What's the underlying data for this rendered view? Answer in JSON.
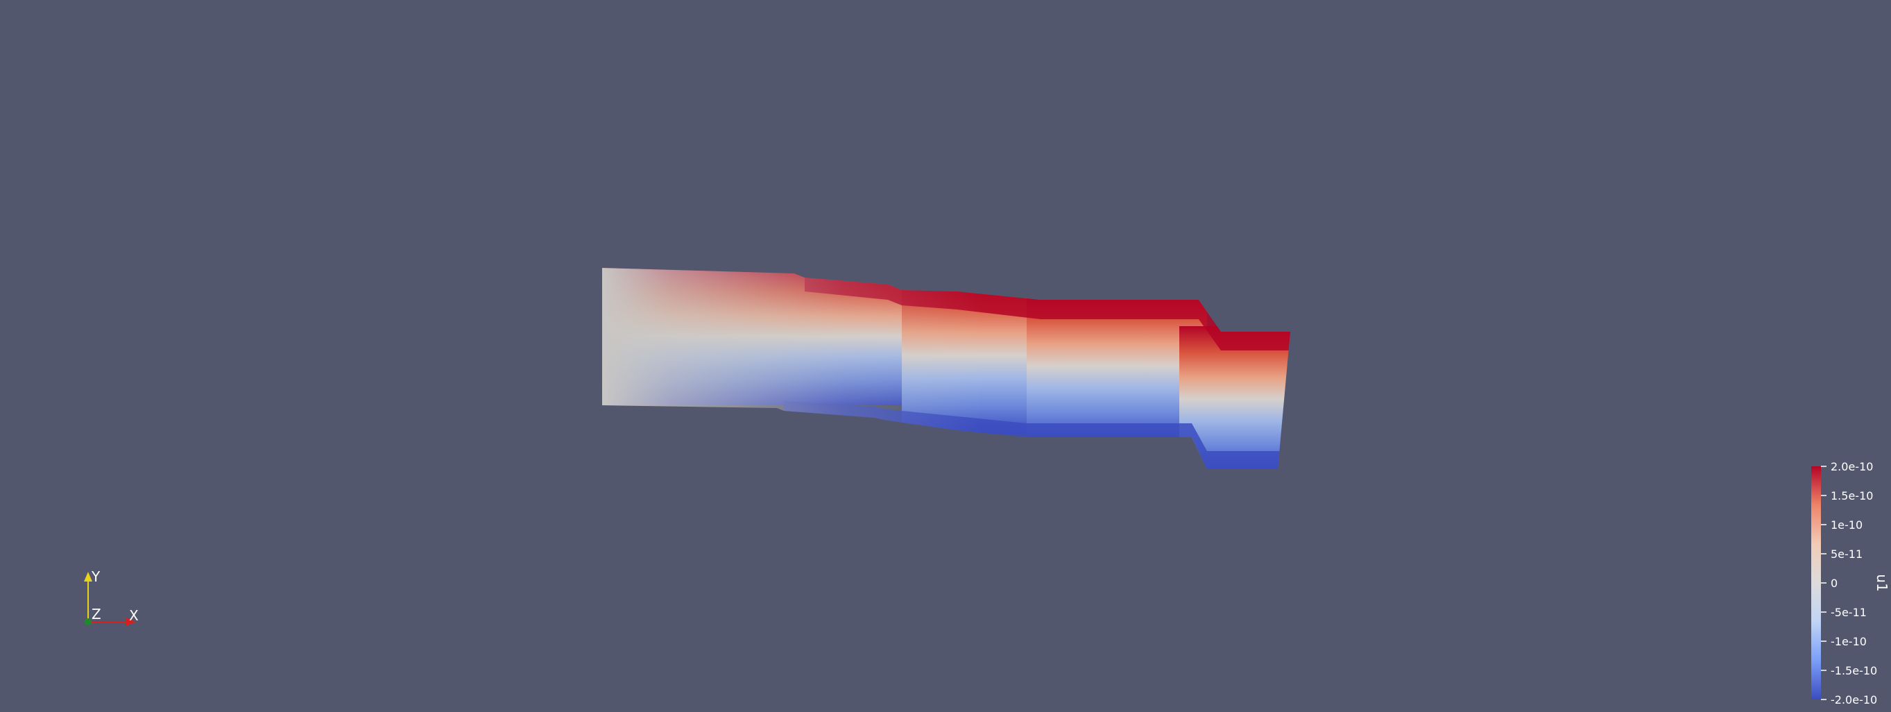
{
  "scene": {
    "background_color": "#52576e"
  },
  "colorbar": {
    "title": "u1",
    "colors": [
      "#3b4cc0",
      "#7b9ff9",
      "#c0d4f5",
      "#dddcdc",
      "#f2cbb7",
      "#ee8468",
      "#b40426"
    ],
    "ticks": [
      "2.0e-10",
      "1.5e-10",
      "1e-10",
      "5e-11",
      "0",
      "-5e-11",
      "-1e-10",
      "-1.5e-10",
      "-2.0e-10"
    ]
  },
  "orientation_axes": {
    "x_label": "X",
    "y_label": "Y",
    "z_label": "Z",
    "x_color": "#d61f1f",
    "y_color": "#e8d21a",
    "z_color": "#1f8a2a"
  }
}
